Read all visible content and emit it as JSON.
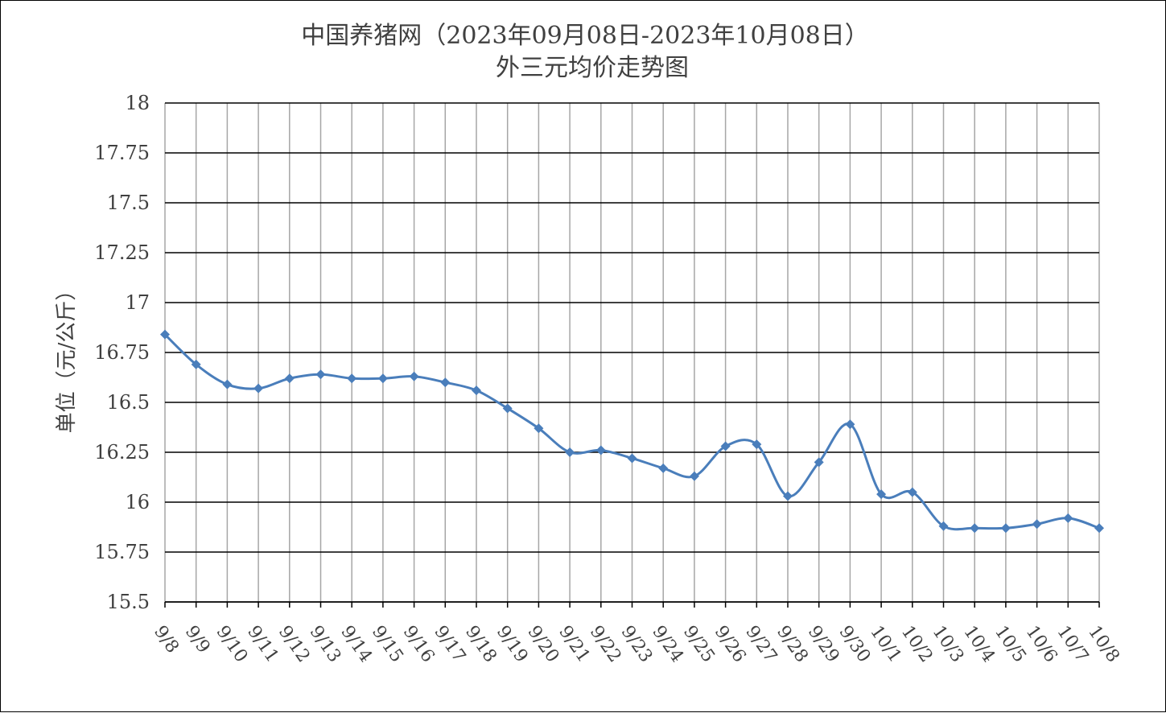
{
  "chart_data": {
    "type": "line",
    "title_line1": "中国养猪网（2023年09月08日-2023年10月08日）",
    "title_line2": "外三元均价走势图",
    "ylabel": "单位（元/公斤）",
    "xlabel": "",
    "ylim": [
      15.5,
      18
    ],
    "yticks": [
      "15.5",
      "15.75",
      "16",
      "16.25",
      "16.5",
      "16.75",
      "17",
      "17.25",
      "17.5",
      "17.75",
      "18"
    ],
    "categories": [
      "9/8",
      "9/9",
      "9/10",
      "9/11",
      "9/12",
      "9/13",
      "9/14",
      "9/15",
      "9/16",
      "9/17",
      "9/18",
      "9/19",
      "9/20",
      "9/21",
      "9/22",
      "9/23",
      "9/24",
      "9/25",
      "9/26",
      "9/27",
      "9/28",
      "9/29",
      "9/30",
      "10/1",
      "10/2",
      "10/3",
      "10/4",
      "10/5",
      "10/6",
      "10/7",
      "10/8"
    ],
    "values": [
      16.84,
      16.69,
      16.59,
      16.57,
      16.62,
      16.64,
      16.62,
      16.62,
      16.63,
      16.6,
      16.56,
      16.47,
      16.37,
      16.25,
      16.26,
      16.22,
      16.17,
      16.13,
      16.28,
      16.29,
      16.03,
      16.2,
      16.39,
      16.04,
      16.05,
      15.88,
      15.87,
      15.87,
      15.89,
      15.92,
      15.87
    ],
    "grid": true,
    "legend": "none",
    "colors": {
      "line": "#4a7ebb",
      "grid": "#000000",
      "vgrid": "#a6a6a6"
    }
  }
}
